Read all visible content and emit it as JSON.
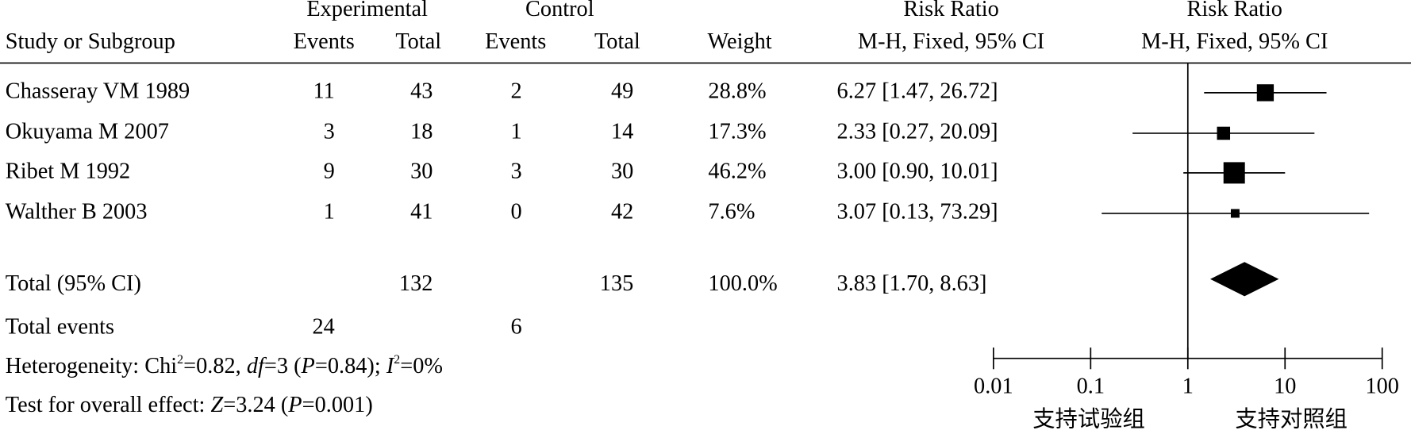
{
  "chart_data": {
    "type": "forest",
    "columns": {
      "group_experimental": "Experimental",
      "group_control": "Control",
      "group_rr_table": "Risk Ratio",
      "group_rr_plot": "Risk Ratio",
      "study": "Study or Subgroup",
      "exp_events": "Events",
      "exp_total": "Total",
      "ctl_events": "Events",
      "ctl_total": "Total",
      "weight": "Weight",
      "method_table": "M-H, Fixed, 95% CI",
      "method_plot": "M-H, Fixed, 95% CI"
    },
    "studies": [
      {
        "name": "Chasseray VM 1989",
        "exp_events": 11,
        "exp_total": 43,
        "ctl_events": 2,
        "ctl_total": 49,
        "weight": 28.8,
        "weight_label": "28.8%",
        "rr": 6.27,
        "lower": 1.47,
        "upper": 26.72,
        "ci_label": "6.27 [1.47, 26.72]"
      },
      {
        "name": "Okuyama M 2007",
        "exp_events": 3,
        "exp_total": 18,
        "ctl_events": 1,
        "ctl_total": 14,
        "weight": 17.3,
        "weight_label": "17.3%",
        "rr": 2.33,
        "lower": 0.27,
        "upper": 20.09,
        "ci_label": "2.33 [0.27, 20.09]"
      },
      {
        "name": "Ribet M 1992",
        "exp_events": 9,
        "exp_total": 30,
        "ctl_events": 3,
        "ctl_total": 30,
        "weight": 46.2,
        "weight_label": "46.2%",
        "rr": 3.0,
        "lower": 0.9,
        "upper": 10.01,
        "ci_label": "3.00 [0.90, 10.01]"
      },
      {
        "name": "Walther B 2003",
        "exp_events": 1,
        "exp_total": 41,
        "ctl_events": 0,
        "ctl_total": 42,
        "weight": 7.6,
        "weight_label": "7.6%",
        "rr": 3.07,
        "lower": 0.13,
        "upper": 73.29,
        "ci_label": "3.07 [0.13, 73.29]"
      }
    ],
    "total": {
      "name": "Total (95% CI)",
      "exp_total": 132,
      "ctl_total": 135,
      "weight": 100.0,
      "weight_label": "100.0%",
      "rr": 3.83,
      "lower": 1.7,
      "upper": 8.63,
      "ci_label": "3.83 [1.70, 8.63]"
    },
    "total_events": {
      "name": "Total events",
      "exp_events": 24,
      "ctl_events": 6
    },
    "heterogeneity": [
      {
        "text": "Heterogeneity: Chi",
        "style": "normal"
      },
      {
        "text": "2",
        "style": "sup"
      },
      {
        "text": "=0.82, ",
        "style": "normal"
      },
      {
        "text": "df",
        "style": "italic"
      },
      {
        "text": "=3 (",
        "style": "normal"
      },
      {
        "text": "P",
        "style": "italic"
      },
      {
        "text": "=0.84); ",
        "style": "normal"
      },
      {
        "text": "I",
        "style": "italic"
      },
      {
        "text": "2",
        "style": "sup"
      },
      {
        "text": "=0%",
        "style": "normal"
      }
    ],
    "overall_effect": [
      {
        "text": "Test for overall effect: ",
        "style": "normal"
      },
      {
        "text": "Z",
        "style": "italic"
      },
      {
        "text": "=3.24 (",
        "style": "normal"
      },
      {
        "text": "P",
        "style": "italic"
      },
      {
        "text": "=0.001)",
        "style": "normal"
      }
    ],
    "xlim": [
      0.01,
      100
    ],
    "log_scale": true,
    "xticks": [
      0.01,
      0.1,
      1,
      10,
      100
    ],
    "reference_line": 1,
    "xlabel_left": "支持试验组",
    "xlabel_right": "支持对照组",
    "color": "#000000"
  }
}
